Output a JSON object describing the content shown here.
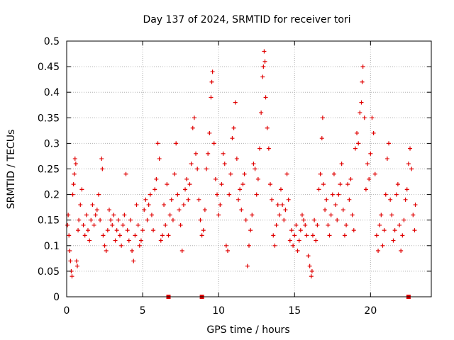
{
  "chart_data": {
    "type": "scatter",
    "title": "Day 137 of 2024, SRMTID for receiver tori",
    "xlabel": "GPS time / hours",
    "ylabel": "SRMTID / TECUs",
    "xlim": [
      0,
      24
    ],
    "ylim": [
      0,
      0.5
    ],
    "grid": true,
    "marker": "+",
    "marker_color": "#e00000",
    "x_ticks": [
      0,
      5,
      10,
      15,
      20
    ],
    "y_ticks": [
      0,
      0.05,
      0.1,
      0.15,
      0.2,
      0.25,
      0.3,
      0.35,
      0.4,
      0.45,
      0.5
    ],
    "x_tick_labels": [
      "0",
      "5",
      "10",
      "15",
      "20"
    ],
    "y_tick_labels": [
      "0",
      "0.05",
      "0.1",
      "0.15",
      "0.2",
      "0.25",
      "0.3",
      "0.35",
      "0.4",
      "0.45",
      "0.5"
    ],
    "points": [
      [
        0.05,
        0.14
      ],
      [
        0.1,
        0.16
      ],
      [
        0.15,
        0.12
      ],
      [
        0.2,
        0.09
      ],
      [
        0.25,
        0.07
      ],
      [
        0.3,
        0.05
      ],
      [
        0.35,
        0.04
      ],
      [
        0.4,
        0.2
      ],
      [
        0.45,
        0.22
      ],
      [
        0.5,
        0.24
      ],
      [
        0.55,
        0.27
      ],
      [
        0.6,
        0.26
      ],
      [
        0.65,
        0.07
      ],
      [
        0.7,
        0.06
      ],
      [
        0.75,
        0.13
      ],
      [
        0.8,
        0.15
      ],
      [
        0.9,
        0.18
      ],
      [
        1.0,
        0.21
      ],
      [
        1.1,
        0.14
      ],
      [
        1.2,
        0.12
      ],
      [
        1.3,
        0.16
      ],
      [
        1.4,
        0.13
      ],
      [
        1.5,
        0.11
      ],
      [
        1.6,
        0.15
      ],
      [
        1.7,
        0.18
      ],
      [
        1.8,
        0.14
      ],
      [
        1.9,
        0.16
      ],
      [
        2.0,
        0.17
      ],
      [
        2.1,
        0.2
      ],
      [
        2.2,
        0.15
      ],
      [
        2.3,
        0.27
      ],
      [
        2.35,
        0.25
      ],
      [
        2.4,
        0.12
      ],
      [
        2.5,
        0.1
      ],
      [
        2.6,
        0.09
      ],
      [
        2.7,
        0.13
      ],
      [
        2.8,
        0.17
      ],
      [
        2.9,
        0.15
      ],
      [
        3.0,
        0.14
      ],
      [
        3.1,
        0.16
      ],
      [
        3.2,
        0.11
      ],
      [
        3.3,
        0.13
      ],
      [
        3.4,
        0.15
      ],
      [
        3.5,
        0.12
      ],
      [
        3.6,
        0.1
      ],
      [
        3.7,
        0.14
      ],
      [
        3.8,
        0.16
      ],
      [
        3.9,
        0.24
      ],
      [
        4.0,
        0.13
      ],
      [
        4.1,
        0.11
      ],
      [
        4.2,
        0.15
      ],
      [
        4.3,
        0.09
      ],
      [
        4.4,
        0.07
      ],
      [
        4.5,
        0.12
      ],
      [
        4.6,
        0.18
      ],
      [
        4.7,
        0.14
      ],
      [
        4.8,
        0.1
      ],
      [
        4.9,
        0.11
      ],
      [
        5.0,
        0.13
      ],
      [
        5.1,
        0.17
      ],
      [
        5.2,
        0.19
      ],
      [
        5.3,
        0.15
      ],
      [
        5.4,
        0.18
      ],
      [
        5.5,
        0.2
      ],
      [
        5.6,
        0.16
      ],
      [
        5.7,
        0.13
      ],
      [
        5.8,
        0.21
      ],
      [
        5.9,
        0.23
      ],
      [
        6.0,
        0.3
      ],
      [
        6.1,
        0.27
      ],
      [
        6.2,
        0.11
      ],
      [
        6.3,
        0.12
      ],
      [
        6.4,
        0.18
      ],
      [
        6.5,
        0.14
      ],
      [
        6.6,
        0.22
      ],
      [
        6.7,
        0.12
      ],
      [
        6.8,
        0.16
      ],
      [
        6.9,
        0.19
      ],
      [
        7.0,
        0.15
      ],
      [
        7.1,
        0.24
      ],
      [
        7.2,
        0.3
      ],
      [
        7.3,
        0.2
      ],
      [
        7.4,
        0.17
      ],
      [
        7.5,
        0.14
      ],
      [
        7.6,
        0.09
      ],
      [
        7.7,
        0.18
      ],
      [
        7.8,
        0.21
      ],
      [
        7.9,
        0.23
      ],
      [
        8.0,
        0.19
      ],
      [
        8.1,
        0.22
      ],
      [
        8.2,
        0.26
      ],
      [
        8.3,
        0.33
      ],
      [
        8.4,
        0.35
      ],
      [
        8.5,
        0.28
      ],
      [
        8.6,
        0.25
      ],
      [
        8.7,
        0.19
      ],
      [
        8.8,
        0.15
      ],
      [
        8.9,
        0.12
      ],
      [
        9.0,
        0.13
      ],
      [
        9.1,
        0.17
      ],
      [
        9.2,
        0.25
      ],
      [
        9.3,
        0.28
      ],
      [
        9.4,
        0.32
      ],
      [
        9.5,
        0.39
      ],
      [
        9.55,
        0.42
      ],
      [
        9.6,
        0.44
      ],
      [
        9.7,
        0.3
      ],
      [
        9.8,
        0.23
      ],
      [
        9.9,
        0.2
      ],
      [
        10.0,
        0.16
      ],
      [
        10.1,
        0.18
      ],
      [
        10.2,
        0.22
      ],
      [
        10.3,
        0.28
      ],
      [
        10.4,
        0.26
      ],
      [
        10.5,
        0.1
      ],
      [
        10.6,
        0.09
      ],
      [
        10.7,
        0.2
      ],
      [
        10.8,
        0.24
      ],
      [
        10.9,
        0.31
      ],
      [
        11.0,
        0.33
      ],
      [
        11.1,
        0.38
      ],
      [
        11.2,
        0.27
      ],
      [
        11.3,
        0.19
      ],
      [
        11.4,
        0.21
      ],
      [
        11.5,
        0.17
      ],
      [
        11.6,
        0.22
      ],
      [
        11.7,
        0.24
      ],
      [
        11.8,
        0.15
      ],
      [
        11.9,
        0.06
      ],
      [
        12.0,
        0.1
      ],
      [
        12.1,
        0.13
      ],
      [
        12.2,
        0.16
      ],
      [
        12.3,
        0.26
      ],
      [
        12.4,
        0.25
      ],
      [
        12.5,
        0.2
      ],
      [
        12.6,
        0.23
      ],
      [
        12.7,
        0.29
      ],
      [
        12.8,
        0.36
      ],
      [
        12.9,
        0.43
      ],
      [
        12.95,
        0.45
      ],
      [
        13.0,
        0.48
      ],
      [
        13.05,
        0.46
      ],
      [
        13.1,
        0.39
      ],
      [
        13.2,
        0.33
      ],
      [
        13.3,
        0.29
      ],
      [
        13.4,
        0.22
      ],
      [
        13.5,
        0.19
      ],
      [
        13.6,
        0.12
      ],
      [
        13.7,
        0.1
      ],
      [
        13.8,
        0.14
      ],
      [
        13.9,
        0.18
      ],
      [
        14.0,
        0.16
      ],
      [
        14.1,
        0.21
      ],
      [
        14.2,
        0.18
      ],
      [
        14.3,
        0.15
      ],
      [
        14.4,
        0.17
      ],
      [
        14.5,
        0.24
      ],
      [
        14.6,
        0.19
      ],
      [
        14.7,
        0.11
      ],
      [
        14.8,
        0.13
      ],
      [
        14.9,
        0.1
      ],
      [
        15.0,
        0.12
      ],
      [
        15.1,
        0.14
      ],
      [
        15.2,
        0.09
      ],
      [
        15.3,
        0.11
      ],
      [
        15.4,
        0.13
      ],
      [
        15.5,
        0.16
      ],
      [
        15.6,
        0.15
      ],
      [
        15.7,
        0.14
      ],
      [
        15.8,
        0.12
      ],
      [
        15.9,
        0.08
      ],
      [
        16.0,
        0.06
      ],
      [
        16.1,
        0.04
      ],
      [
        16.15,
        0.05
      ],
      [
        16.2,
        0.12
      ],
      [
        16.3,
        0.15
      ],
      [
        16.4,
        0.11
      ],
      [
        16.5,
        0.14
      ],
      [
        16.6,
        0.21
      ],
      [
        16.7,
        0.24
      ],
      [
        16.8,
        0.31
      ],
      [
        16.85,
        0.35
      ],
      [
        16.9,
        0.22
      ],
      [
        17.0,
        0.17
      ],
      [
        17.1,
        0.19
      ],
      [
        17.2,
        0.14
      ],
      [
        17.3,
        0.12
      ],
      [
        17.4,
        0.16
      ],
      [
        17.5,
        0.2
      ],
      [
        17.6,
        0.24
      ],
      [
        17.7,
        0.18
      ],
      [
        17.8,
        0.15
      ],
      [
        17.9,
        0.2
      ],
      [
        18.0,
        0.22
      ],
      [
        18.1,
        0.26
      ],
      [
        18.2,
        0.17
      ],
      [
        18.3,
        0.12
      ],
      [
        18.4,
        0.14
      ],
      [
        18.5,
        0.22
      ],
      [
        18.6,
        0.19
      ],
      [
        18.7,
        0.23
      ],
      [
        18.8,
        0.16
      ],
      [
        18.9,
        0.13
      ],
      [
        19.0,
        0.29
      ],
      [
        19.1,
        0.32
      ],
      [
        19.2,
        0.3
      ],
      [
        19.3,
        0.36
      ],
      [
        19.4,
        0.38
      ],
      [
        19.45,
        0.42
      ],
      [
        19.5,
        0.45
      ],
      [
        19.6,
        0.35
      ],
      [
        19.7,
        0.21
      ],
      [
        19.8,
        0.26
      ],
      [
        19.9,
        0.23
      ],
      [
        20.0,
        0.28
      ],
      [
        20.1,
        0.35
      ],
      [
        20.2,
        0.32
      ],
      [
        20.3,
        0.24
      ],
      [
        20.4,
        0.12
      ],
      [
        20.5,
        0.09
      ],
      [
        20.6,
        0.14
      ],
      [
        20.7,
        0.16
      ],
      [
        20.8,
        0.1
      ],
      [
        20.9,
        0.13
      ],
      [
        21.0,
        0.2
      ],
      [
        21.1,
        0.27
      ],
      [
        21.2,
        0.3
      ],
      [
        21.3,
        0.19
      ],
      [
        21.4,
        0.16
      ],
      [
        21.5,
        0.11
      ],
      [
        21.6,
        0.13
      ],
      [
        21.7,
        0.2
      ],
      [
        21.8,
        0.22
      ],
      [
        21.9,
        0.14
      ],
      [
        22.0,
        0.09
      ],
      [
        22.1,
        0.12
      ],
      [
        22.2,
        0.15
      ],
      [
        22.3,
        0.19
      ],
      [
        22.4,
        0.21
      ],
      [
        22.5,
        0.26
      ],
      [
        22.6,
        0.29
      ],
      [
        22.7,
        0.25
      ],
      [
        22.8,
        0.16
      ],
      [
        22.9,
        0.13
      ],
      [
        22.95,
        0.18
      ]
    ],
    "baseline_markers_x": [
      6.7,
      8.9,
      22.5
    ]
  }
}
